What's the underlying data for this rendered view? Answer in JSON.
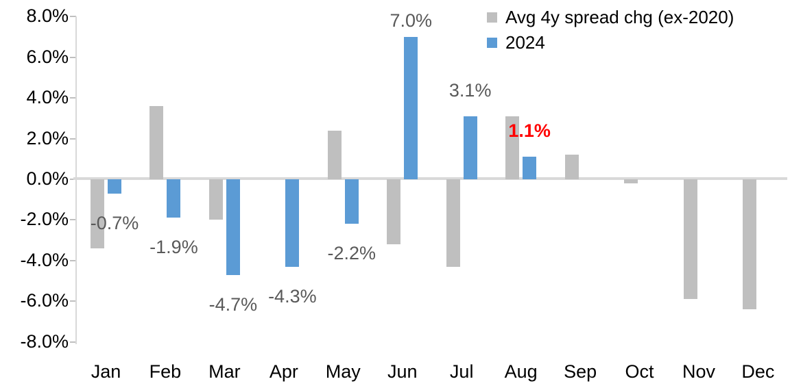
{
  "chart_data": {
    "type": "bar",
    "title": "",
    "xlabel": "",
    "ylabel": "",
    "categories": [
      "Jan",
      "Feb",
      "Mar",
      "Apr",
      "May",
      "Jun",
      "Jul",
      "Aug",
      "Sep",
      "Oct",
      "Nov",
      "Dec"
    ],
    "series": [
      {
        "name": "Avg 4y spread chg (ex-2020)",
        "color": "#bfbfbf",
        "values": [
          -3.4,
          3.6,
          -2.0,
          0.0,
          2.4,
          -3.2,
          -4.3,
          3.1,
          1.2,
          -0.2,
          -5.9,
          -6.4
        ]
      },
      {
        "name": "2024",
        "color": "#5b9bd5",
        "values": [
          -0.7,
          -1.9,
          -4.7,
          -4.3,
          -2.2,
          7.0,
          3.1,
          1.1,
          null,
          null,
          null,
          null
        ]
      }
    ],
    "data_labels": [
      {
        "category": "Jan",
        "series": "2024",
        "value": -0.7,
        "text": "-0.7%",
        "color": "#595959",
        "bold": false
      },
      {
        "category": "Feb",
        "series": "2024",
        "value": -1.9,
        "text": "-1.9%",
        "color": "#595959",
        "bold": false
      },
      {
        "category": "Mar",
        "series": "2024",
        "value": -4.7,
        "text": "-4.7%",
        "color": "#595959",
        "bold": false
      },
      {
        "category": "Apr",
        "series": "2024",
        "value": -4.3,
        "text": "-4.3%",
        "color": "#595959",
        "bold": false
      },
      {
        "category": "May",
        "series": "2024",
        "value": -2.2,
        "text": "-2.2%",
        "color": "#595959",
        "bold": false
      },
      {
        "category": "Jun",
        "series": "2024",
        "value": 7.0,
        "text": "7.0%",
        "color": "#595959",
        "bold": false
      },
      {
        "category": "Jul",
        "series": "2024",
        "value": 3.1,
        "text": "3.1%",
        "color": "#595959",
        "bold": false
      },
      {
        "category": "Aug",
        "series": "2024",
        "value": 1.1,
        "text": "1.1%",
        "color": "#ff0000",
        "bold": true
      }
    ],
    "y_tick_labels": [
      "8.0%",
      "6.0%",
      "4.0%",
      "2.0%",
      "0.0%",
      "-2.0%",
      "-4.0%",
      "-6.0%",
      "-8.0%"
    ],
    "y_tick_values": [
      8,
      6,
      4,
      2,
      0,
      -2,
      -4,
      -6,
      -8
    ],
    "ylim": [
      -8,
      8
    ],
    "grid": false,
    "legend_position": "top-right",
    "axis_color": "#d9d9d9",
    "tick_color": "#bfbfbf"
  }
}
